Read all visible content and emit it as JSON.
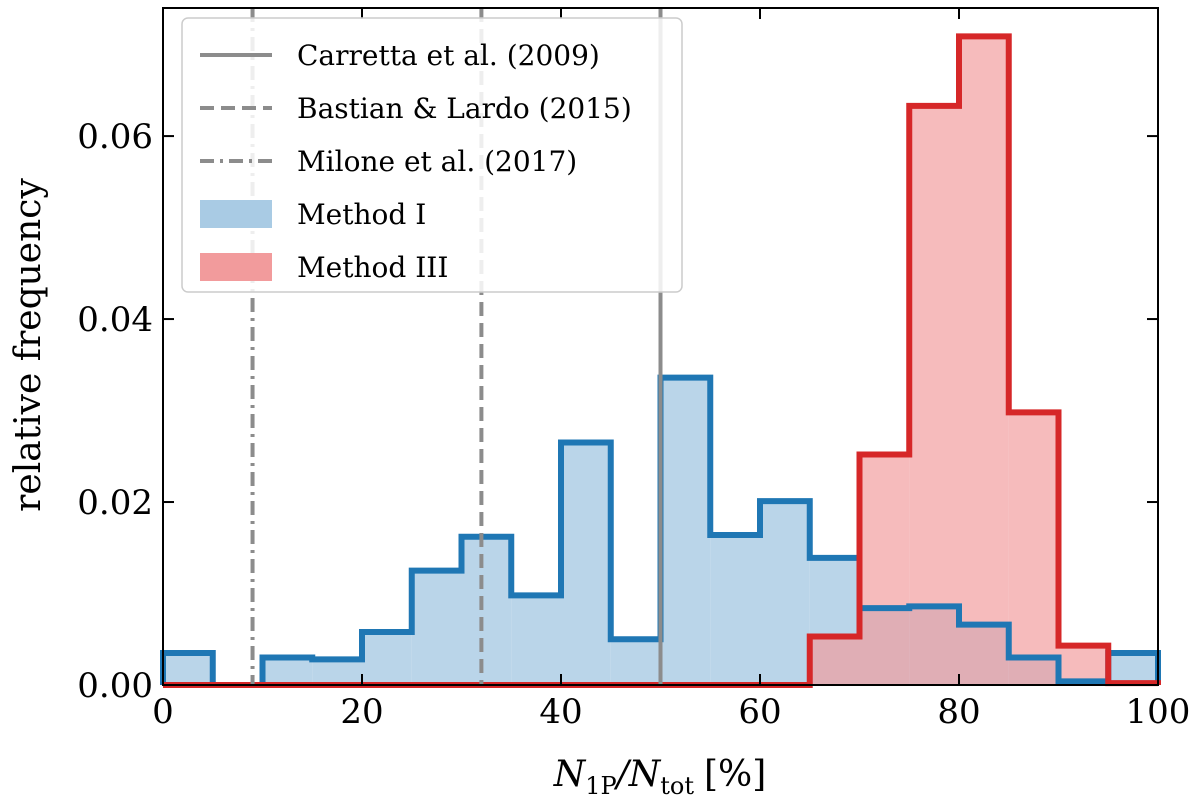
{
  "chart_data": {
    "type": "histogram",
    "xlabel": {
      "main": "N",
      "sub1": "1P",
      "slash": "/N",
      "sub2": "tot",
      "unit": "[%]"
    },
    "ylabel": "relative frequency",
    "xlim": [
      0,
      100
    ],
    "ylim": [
      0,
      0.074
    ],
    "x_ticks": [
      0,
      20,
      40,
      60,
      80,
      100
    ],
    "x_tick_labels": [
      "0",
      "20",
      "40",
      "60",
      "80",
      "100"
    ],
    "y_ticks": [
      0.0,
      0.02,
      0.04,
      0.06
    ],
    "y_tick_labels": [
      "0.00",
      "0.02",
      "0.04",
      "0.06"
    ],
    "bin_edges": [
      0,
      5,
      10,
      15,
      20,
      25,
      30,
      35,
      40,
      45,
      50,
      55,
      60,
      65,
      70,
      75,
      80,
      85,
      90,
      95,
      100
    ],
    "series": [
      {
        "name": "Method I",
        "fill": "#a9cbe4",
        "edge": "#1f77b4",
        "values": [
          0.0035,
          0.0,
          0.003,
          0.0028,
          0.0058,
          0.0125,
          0.0162,
          0.0098,
          0.0265,
          0.005,
          0.0336,
          0.0164,
          0.0201,
          0.0139,
          0.0084,
          0.0086,
          0.0066,
          0.003,
          0.0004,
          0.0035
        ]
      },
      {
        "name": "Method III",
        "fill": "#f29b9c",
        "edge": "#d62728",
        "values": [
          0.0,
          0.0,
          0.0,
          0.0,
          0.0,
          0.0,
          0.0,
          0.0,
          0.0,
          0.0,
          0.0,
          0.0,
          0.0,
          0.0053,
          0.0252,
          0.0633,
          0.0709,
          0.0298,
          0.0043,
          0.0002
        ]
      }
    ],
    "reference_lines": [
      {
        "name": "Carretta et al. (2009)",
        "x": 50,
        "style": "solid",
        "color": "#8c8c8c"
      },
      {
        "name": "Bastian & Lardo (2015)",
        "x": 32,
        "style": "dashed",
        "color": "#8c8c8c"
      },
      {
        "name": "Milone et al. (2017)",
        "x": 9,
        "style": "dashdot",
        "color": "#8c8c8c"
      }
    ],
    "legend": {
      "position": "top-left",
      "entries": [
        "Carretta et al. (2009)",
        "Bastian & Lardo (2015)",
        "Milone et al. (2017)",
        "Method I",
        "Method III"
      ]
    }
  }
}
